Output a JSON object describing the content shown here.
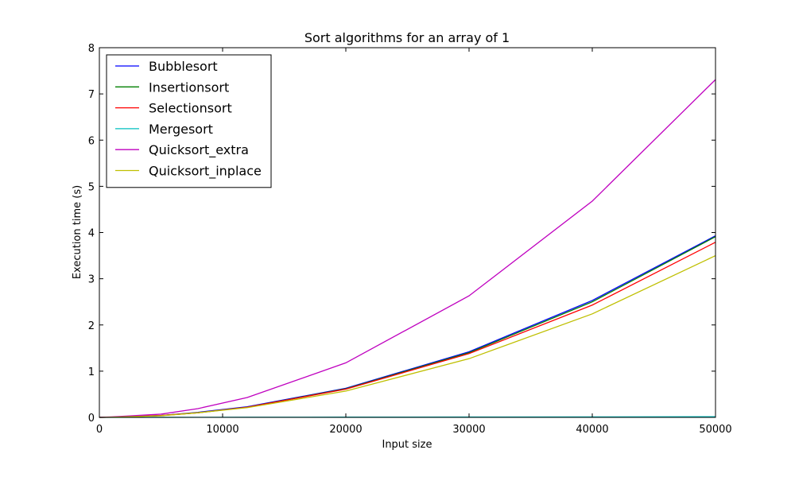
{
  "chart_data": {
    "type": "line",
    "title": "Sort algorithms for an array of 1",
    "xlabel": "Input size",
    "ylabel": "Execution time (s)",
    "xlim": [
      0,
      50000
    ],
    "ylim": [
      0,
      8
    ],
    "xticks": [
      "0",
      "10000",
      "20000",
      "30000",
      "40000",
      "50000"
    ],
    "yticks": [
      "0",
      "1",
      "2",
      "3",
      "4",
      "5",
      "6",
      "7",
      "8"
    ],
    "grid": false,
    "legend_position": "top-left",
    "series": [
      {
        "name": "Bubblesort",
        "color": "#0000ff",
        "x": [
          0,
          1000,
          5000,
          8000,
          12000,
          20000,
          30000,
          40000,
          50000
        ],
        "y": [
          0,
          0.004,
          0.04,
          0.11,
          0.23,
          0.63,
          1.42,
          2.53,
          3.93
        ]
      },
      {
        "name": "Insertionsort",
        "color": "#007f00",
        "x": [
          0,
          1000,
          5000,
          8000,
          12000,
          20000,
          30000,
          40000,
          50000
        ],
        "y": [
          0,
          0.004,
          0.04,
          0.1,
          0.22,
          0.62,
          1.4,
          2.5,
          3.91
        ]
      },
      {
        "name": "Selectionsort",
        "color": "#ff0000",
        "x": [
          0,
          1000,
          5000,
          8000,
          12000,
          20000,
          30000,
          40000,
          50000
        ],
        "y": [
          0,
          0.004,
          0.04,
          0.1,
          0.22,
          0.61,
          1.38,
          2.43,
          3.79
        ]
      },
      {
        "name": "Mergesort",
        "color": "#00bfbf",
        "x": [
          0,
          1000,
          5000,
          8000,
          12000,
          20000,
          30000,
          40000,
          50000
        ],
        "y": [
          0,
          0.0003,
          0.001,
          0.002,
          0.003,
          0.005,
          0.008,
          0.011,
          0.014
        ]
      },
      {
        "name": "Quicksort_extra",
        "color": "#bf00bf",
        "x": [
          0,
          1000,
          5000,
          8000,
          12000,
          20000,
          30000,
          40000,
          50000
        ],
        "y": [
          0,
          0.01,
          0.07,
          0.19,
          0.43,
          1.18,
          2.63,
          4.68,
          7.31
        ]
      },
      {
        "name": "Quicksort_inplace",
        "color": "#bfbf00",
        "x": [
          0,
          1000,
          5000,
          8000,
          12000,
          20000,
          30000,
          40000,
          50000
        ],
        "y": [
          0,
          0.003,
          0.035,
          0.1,
          0.21,
          0.57,
          1.27,
          2.24,
          3.5
        ]
      }
    ]
  }
}
